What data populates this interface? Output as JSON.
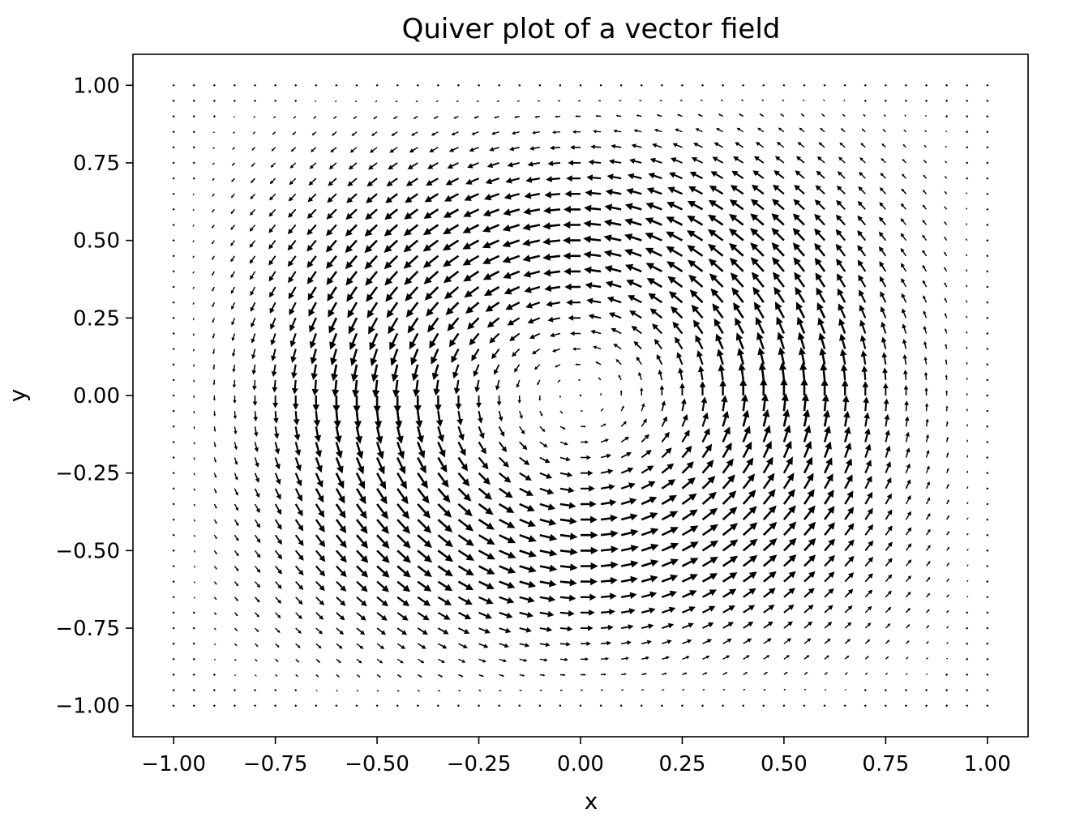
{
  "chart_data": {
    "type": "quiver",
    "title": "Quiver plot of a vector field",
    "xlabel": "x",
    "ylabel": "y",
    "xlim": [
      -1.1,
      1.1
    ],
    "ylim": [
      -1.1,
      1.1
    ],
    "xticks": [
      -1.0,
      -0.75,
      -0.5,
      -0.25,
      0.0,
      0.25,
      0.5,
      0.75,
      1.0
    ],
    "xtick_labels": [
      "−1.00",
      "−0.75",
      "−0.50",
      "−0.25",
      "0.00",
      "0.25",
      "0.50",
      "0.75",
      "1.00"
    ],
    "yticks": [
      1.0,
      0.75,
      0.5,
      0.25,
      0.0,
      -0.25,
      -0.5,
      -0.75,
      -1.0
    ],
    "ytick_labels": [
      "1.00",
      "0.75",
      "0.50",
      "0.25",
      "0.00",
      "−0.25",
      "−0.50",
      "−0.75",
      "−1.00"
    ],
    "grid": false,
    "legend": "none",
    "arrow_color": "#000000",
    "field": {
      "x_range": [
        -1.0,
        1.0
      ],
      "y_range": [
        -1.0,
        1.0
      ],
      "nx": 41,
      "ny": 41,
      "u_expression": "-sin(pi*y)*cos(pi*x/2)",
      "v_expression": "sin(pi*x)*cos(pi*y/2)"
    }
  }
}
